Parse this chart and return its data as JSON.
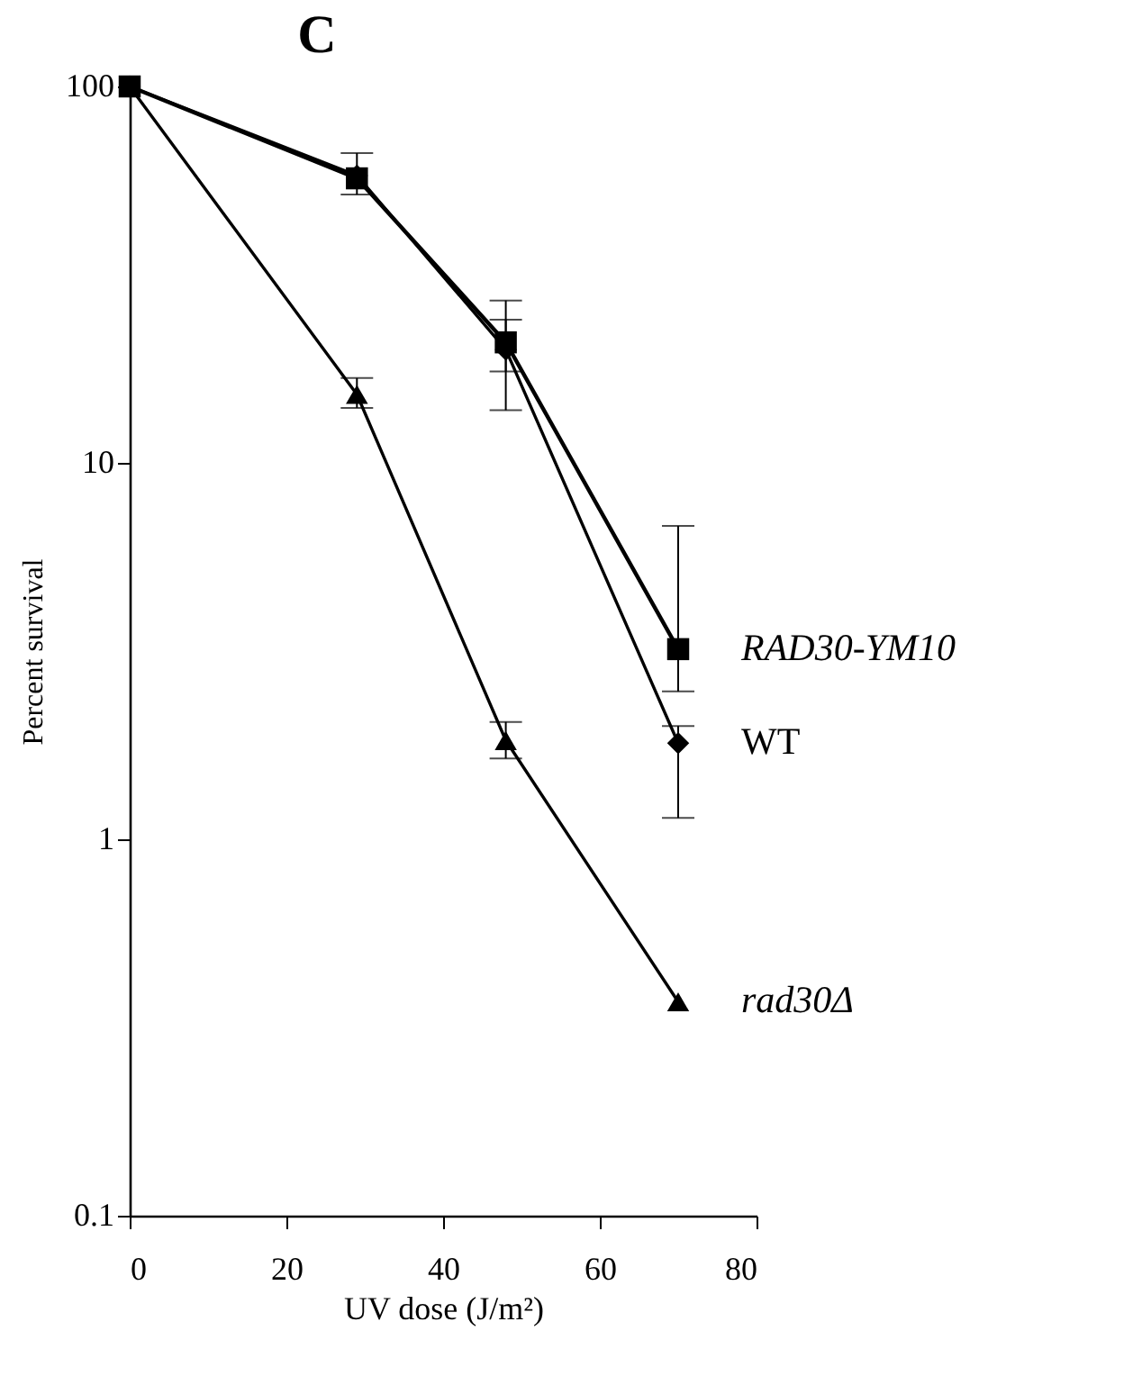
{
  "chart_data": {
    "type": "line",
    "title": "C",
    "xlabel": "UV dose (J/m²)",
    "ylabel": "Percent survival",
    "xlim": [
      0,
      80
    ],
    "xticks": [
      0,
      20,
      40,
      60,
      80
    ],
    "ylim": [
      0.1,
      100
    ],
    "yticks": [
      0.1,
      1,
      10,
      100
    ],
    "log": true,
    "grid": false,
    "legend": false,
    "series": [
      {
        "name": "RAD30-YM10",
        "color": "#000000",
        "marker": "square",
        "x": [
          0,
          29,
          48,
          70
        ],
        "values": [
          100,
          57,
          20.9,
          3.2
        ],
        "errors": [
          null,
          [
            51.6,
            66.5
          ],
          [
            17.5,
            27
          ],
          [
            2.47,
            6.8
          ]
        ]
      },
      {
        "name": "WT",
        "color": "#000000",
        "marker": "diamond",
        "x": [
          0,
          29,
          48,
          70
        ],
        "values": [
          100,
          58,
          20,
          1.8
        ],
        "errors": [
          null,
          null,
          [
            13.8,
            24
          ],
          [
            1.14,
            2.0
          ]
        ]
      },
      {
        "name": "rad30Δ",
        "color": "#000000",
        "marker": "triangle",
        "x": [
          0,
          29,
          48,
          70
        ],
        "values": [
          100,
          15.2,
          1.83,
          0.37
        ],
        "errors": [
          null,
          [
            14.0,
            16.8
          ],
          [
            1.64,
            2.05
          ],
          null
        ]
      }
    ]
  }
}
